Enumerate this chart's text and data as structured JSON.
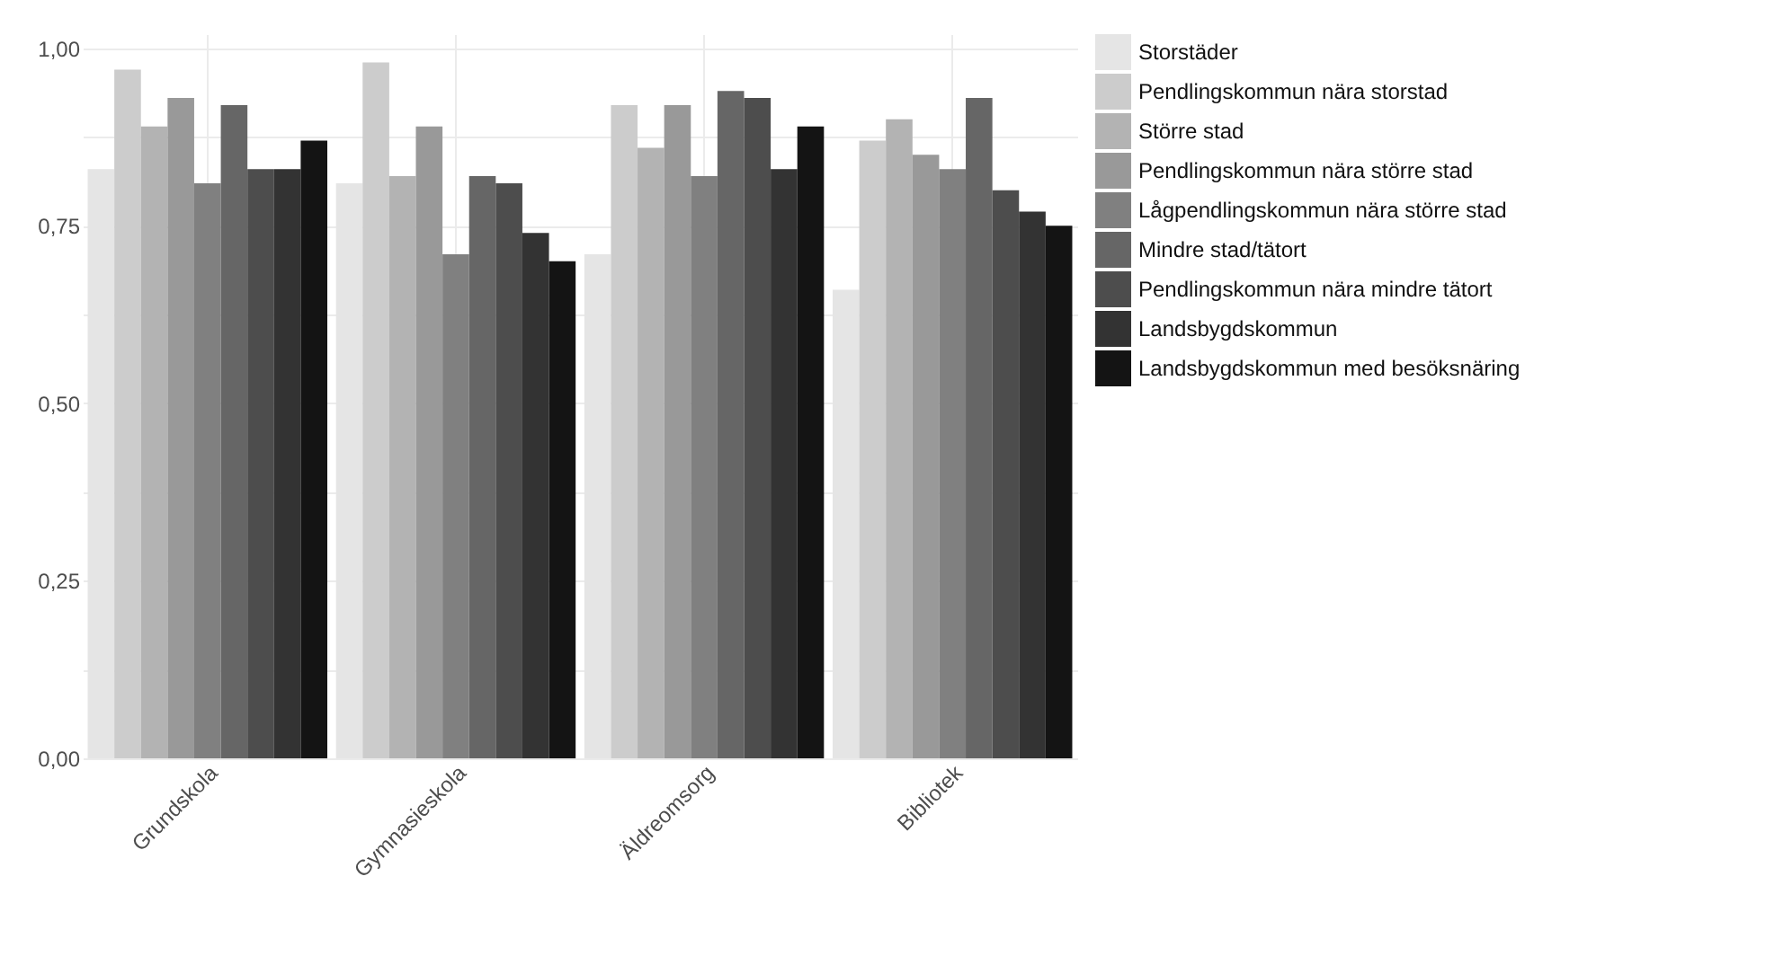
{
  "chart_data": {
    "type": "bar",
    "categories": [
      "Grundskola",
      "Gymnasieskola",
      "Äldreomsorg",
      "Bibliotek"
    ],
    "series": [
      {
        "name": "Storstäder",
        "color": "#e5e5e5",
        "values": [
          0.83,
          0.81,
          0.71,
          0.66
        ]
      },
      {
        "name": "Pendlingskommun nära storstad",
        "color": "#cccccc",
        "values": [
          0.97,
          0.98,
          0.92,
          0.87
        ]
      },
      {
        "name": "Större stad",
        "color": "#b3b3b3",
        "values": [
          0.89,
          0.82,
          0.86,
          0.9
        ]
      },
      {
        "name": "Pendlingskommun nära större stad",
        "color": "#999999",
        "values": [
          0.93,
          0.89,
          0.92,
          0.85
        ]
      },
      {
        "name": "Lågpendlingskommun nära större stad",
        "color": "#808080",
        "values": [
          0.81,
          0.71,
          0.82,
          0.83
        ]
      },
      {
        "name": "Mindre stad/tätort",
        "color": "#666666",
        "values": [
          0.92,
          0.82,
          0.94,
          0.93
        ]
      },
      {
        "name": "Pendlingskommun nära mindre tätort",
        "color": "#4d4d4d",
        "values": [
          0.83,
          0.81,
          0.93,
          0.8
        ]
      },
      {
        "name": "Landsbygdskommun",
        "color": "#333333",
        "values": [
          0.83,
          0.74,
          0.83,
          0.77
        ]
      },
      {
        "name": "Landsbygdskommun med besöksnäring",
        "color": "#141414",
        "values": [
          0.87,
          0.7,
          0.89,
          0.75
        ]
      }
    ],
    "ylim": [
      0,
      1.02
    ],
    "yticks": [
      {
        "value": 0,
        "label": "0,00"
      },
      {
        "value": 0.125,
        "label": null
      },
      {
        "value": 0.25,
        "label": "0,25"
      },
      {
        "value": 0.375,
        "label": null
      },
      {
        "value": 0.5,
        "label": "0,50"
      },
      {
        "value": 0.625,
        "label": null
      },
      {
        "value": 0.75,
        "label": "0,75"
      },
      {
        "value": 0.875,
        "label": null
      },
      {
        "value": 1,
        "label": "1,00"
      }
    ],
    "grid": true,
    "legend": "right"
  }
}
